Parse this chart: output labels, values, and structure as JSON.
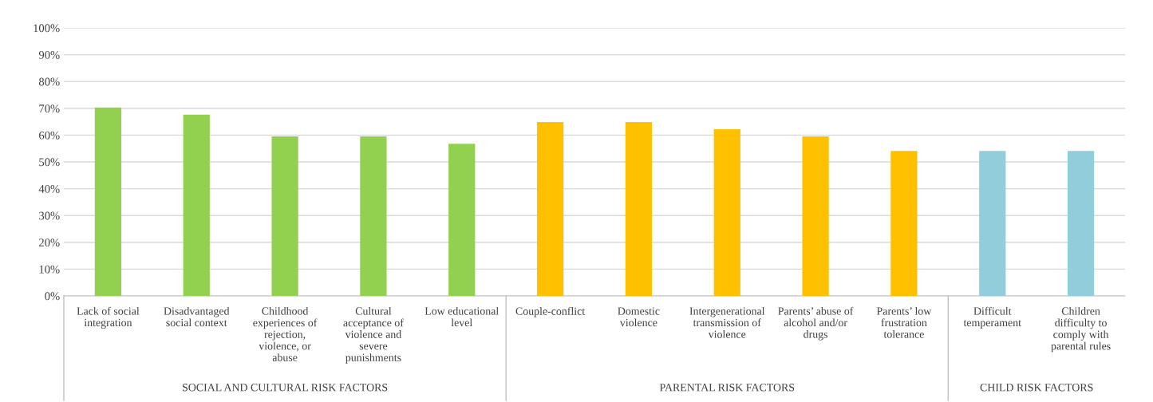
{
  "chart_data": {
    "type": "bar",
    "categories": [
      "Lack of social\nintegration",
      "Disadvantaged\nsocial context",
      "Childhood\nexperiences of\nrejection,\nviolence, or\nabuse",
      "Cultural\nacceptance of\nviolence and\nsevere\npunishments",
      "Low educational\nlevel",
      "Couple-conflict",
      "Domestic\nviolence",
      "Intergenerational\ntransmission of\nviolence",
      "Parents’ abuse of\nalcohol and/or\ndrugs",
      "Parents’ low\nfrustration\ntolerance",
      "Difficult\ntemperament",
      "Children\ndifficulty to\ncomply with\nparental rules"
    ],
    "values": [
      70.3,
      67.6,
      59.5,
      59.5,
      56.8,
      64.9,
      64.9,
      62.2,
      59.5,
      54.1,
      54.1,
      54.1
    ],
    "colors": [
      "#92d050",
      "#92d050",
      "#92d050",
      "#92d050",
      "#92d050",
      "#ffc000",
      "#ffc000",
      "#ffc000",
      "#ffc000",
      "#ffc000",
      "#92cddc",
      "#92cddc"
    ],
    "ylim": [
      0,
      100
    ],
    "yticks": [
      {
        "value": 0,
        "label": "0%"
      },
      {
        "value": 10,
        "label": "10%"
      },
      {
        "value": 20,
        "label": "20%"
      },
      {
        "value": 30,
        "label": "30%"
      },
      {
        "value": 40,
        "label": "40%"
      },
      {
        "value": 50,
        "label": "50%"
      },
      {
        "value": 60,
        "label": "60%"
      },
      {
        "value": 70,
        "label": "70%"
      },
      {
        "value": 80,
        "label": "80%"
      },
      {
        "value": 90,
        "label": "90%"
      },
      {
        "value": 100,
        "label": "100%"
      }
    ],
    "grid": "y",
    "annotations": [
      "SOCIAL AND CULTURAL RISK FACTORS",
      "PARENTAL RISK FACTORS",
      "CHILD RISK FACTORS"
    ]
  }
}
